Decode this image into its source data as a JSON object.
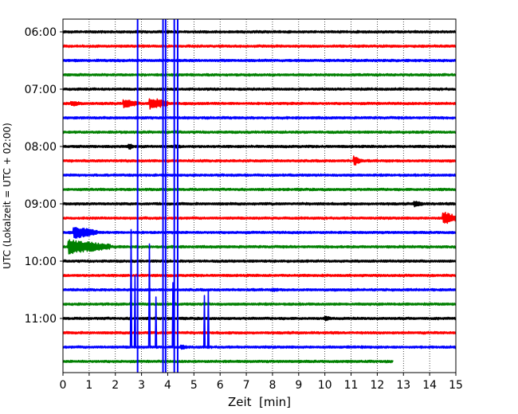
{
  "chart_data": {
    "type": "line",
    "chart_kind": "helicorder seismogram",
    "xlabel": "Zeit  [min]",
    "ylabel": "UTC (Lokalzeit = UTC + 02:00)",
    "xlim": [
      0,
      15
    ],
    "x_ticks": [
      "0",
      "1",
      "2",
      "3",
      "4",
      "5",
      "6",
      "7",
      "8",
      "9",
      "10",
      "11",
      "12",
      "13",
      "14",
      "15"
    ],
    "y_tick_labels": [
      "06:00",
      "07:00",
      "08:00",
      "09:00",
      "10:00",
      "11:00"
    ],
    "y_tick_rows": [
      0,
      4,
      8,
      12,
      16,
      20
    ],
    "trace_count": 24,
    "trace_minutes": 15,
    "last_trace_end_min": 12.6,
    "grid": "vertical dotted lines at every minute",
    "trace_colors": [
      "#000000",
      "#ff0000",
      "#0000ff",
      "#008000"
    ],
    "events": [
      {
        "trace": 3,
        "min": 14.0,
        "amp": 0.15,
        "dur": 0.5
      },
      {
        "trace": 4,
        "min": 14.8,
        "amp": 0.12,
        "dur": 0.3
      },
      {
        "trace": 5,
        "min": 0.3,
        "amp": 0.4,
        "dur": 0.5
      },
      {
        "trace": 5,
        "min": 2.3,
        "amp": 0.6,
        "dur": 0.6
      },
      {
        "trace": 5,
        "min": 3.3,
        "amp": 0.9,
        "dur": 0.7
      },
      {
        "trace": 8,
        "min": 4.3,
        "amp": 0.3,
        "dur": 0.3
      },
      {
        "trace": 8,
        "min": 2.5,
        "amp": 0.5,
        "dur": 0.2
      },
      {
        "trace": 9,
        "min": 11.1,
        "amp": 0.7,
        "dur": 0.3
      },
      {
        "trace": 9,
        "min": 10.0,
        "amp": 0.15,
        "dur": 0.4
      },
      {
        "trace": 12,
        "min": 13.4,
        "amp": 0.45,
        "dur": 0.4
      },
      {
        "trace": 13,
        "min": 14.5,
        "amp": 0.9,
        "dur": 0.6
      },
      {
        "trace": 14,
        "min": 0.4,
        "amp": 0.9,
        "dur": 0.9
      },
      {
        "trace": 15,
        "min": 0.2,
        "amp": 1.0,
        "dur": 1.6
      },
      {
        "trace": 15,
        "min": 3.2,
        "amp": 0.15,
        "dur": 0.5
      },
      {
        "trace": 18,
        "min": 8.0,
        "amp": 0.25,
        "dur": 0.5
      },
      {
        "trace": 18,
        "min": 0.3,
        "amp": 0.2,
        "dur": 0.4
      },
      {
        "trace": 20,
        "min": 10.0,
        "amp": 0.35,
        "dur": 0.3
      },
      {
        "trace": 21,
        "min": 7.8,
        "amp": 0.15,
        "dur": 0.4
      },
      {
        "trace": 22,
        "min": 11.4,
        "amp": 0.2,
        "dur": 0.3
      },
      {
        "trace": 22,
        "min": 4.5,
        "amp": 0.35,
        "dur": 0.3
      }
    ],
    "spikes": [
      {
        "trace": 22,
        "min": 2.6,
        "height_rows": -8.2
      },
      {
        "trace": 22,
        "min": 2.75,
        "height_rows": -5.0
      },
      {
        "trace": 22,
        "min": 3.3,
        "height_rows": -7.2
      },
      {
        "trace": 22,
        "min": 3.55,
        "height_rows": -3.5
      },
      {
        "trace": 22,
        "min": 4.2,
        "height_rows": -4.5
      },
      {
        "trace": 22,
        "min": 5.4,
        "height_rows": -3.6
      },
      {
        "trace": 22,
        "min": 5.55,
        "height_rows": -4.0
      }
    ],
    "full_height_lines": [
      {
        "trace": 2,
        "min": 2.85
      },
      {
        "trace": 2,
        "min": 3.82
      },
      {
        "trace": 2,
        "min": 3.92
      },
      {
        "trace": 2,
        "min": 4.25
      },
      {
        "trace": 2,
        "min": 4.38
      }
    ]
  }
}
